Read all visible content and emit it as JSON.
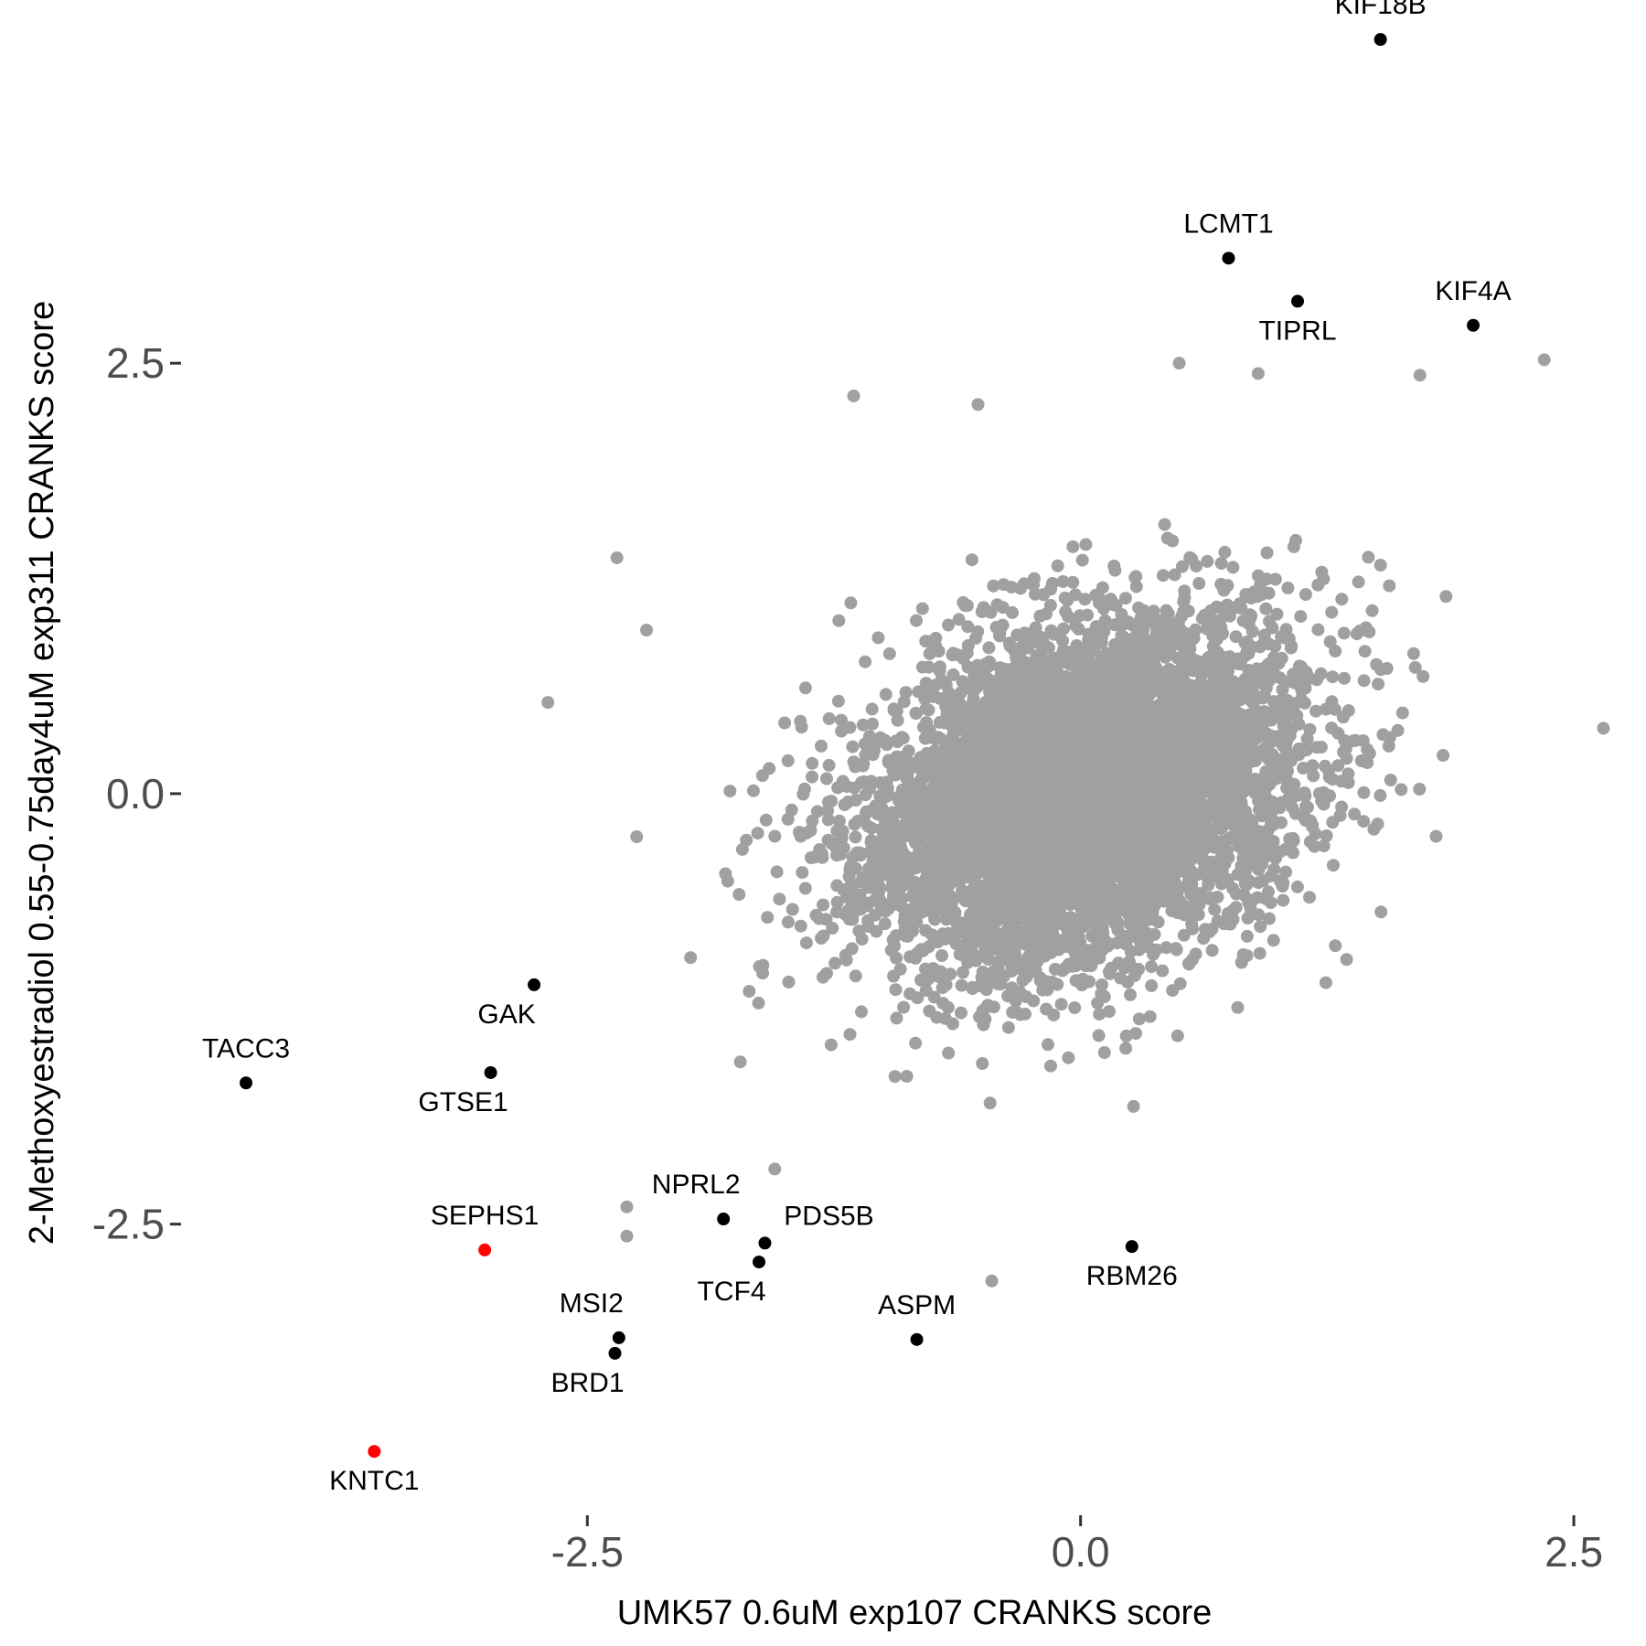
{
  "chart_data": {
    "type": "scatter",
    "xlabel": "UMK57 0.6uM exp107 CRANKS score",
    "ylabel": "2-Methoxyestradiol 0.55-0.75day4uM exp311 CRANKS score",
    "xlim": [
      -4.55,
      2.75
    ],
    "ylim": [
      -4.18,
      4.45
    ],
    "x_ticks": [
      -2.5,
      0.0,
      2.5
    ],
    "x_tick_labels": [
      "-2.5",
      "0.0",
      "2.5"
    ],
    "y_ticks": [
      -2.5,
      0.0,
      2.5
    ],
    "y_tick_labels": [
      "-2.5",
      "0.0",
      "2.5"
    ],
    "grid": false,
    "legend": "none",
    "colors": {
      "background": "#a0a0a0",
      "highlight": "#000000",
      "special": "#ff0000"
    },
    "background_cloud": {
      "description": "dense cloud of genes, approximately bivariate normal",
      "center": [
        0.0,
        0.0
      ],
      "sd": [
        0.55,
        0.5
      ],
      "correlation": 0.25,
      "approx_count": 6000
    },
    "background_outliers": [
      {
        "x": 2.65,
        "y": 0.38
      },
      {
        "x": 2.35,
        "y": 2.52
      },
      {
        "x": 1.72,
        "y": 2.43
      },
      {
        "x": 0.9,
        "y": 2.44
      },
      {
        "x": 0.5,
        "y": 2.5
      },
      {
        "x": -1.15,
        "y": 2.31
      },
      {
        "x": -0.52,
        "y": 2.26
      },
      {
        "x": -2.35,
        "y": 1.37
      },
      {
        "x": -2.7,
        "y": 0.53
      },
      {
        "x": -2.2,
        "y": 0.95
      },
      {
        "x": -2.3,
        "y": -2.4
      },
      {
        "x": -2.3,
        "y": -2.57
      },
      {
        "x": -0.45,
        "y": -2.83
      },
      {
        "x": -2.25,
        "y": -0.25
      },
      {
        "x": -1.55,
        "y": -2.18
      }
    ],
    "labeled_points": [
      {
        "label": "KIF18B",
        "x": 1.52,
        "y": 4.38,
        "color": "#000000",
        "label_pos": "above"
      },
      {
        "label": "LCMT1",
        "x": 0.75,
        "y": 3.11,
        "color": "#000000",
        "label_pos": "above"
      },
      {
        "label": "TIPRL",
        "x": 1.1,
        "y": 2.86,
        "color": "#000000",
        "label_pos": "below"
      },
      {
        "label": "KIF4A",
        "x": 1.99,
        "y": 2.72,
        "color": "#000000",
        "label_pos": "above"
      },
      {
        "label": "GAK",
        "x": -2.77,
        "y": -1.11,
        "color": "#000000",
        "label_pos": "below-left"
      },
      {
        "label": "TACC3",
        "x": -4.23,
        "y": -1.68,
        "color": "#000000",
        "label_pos": "above"
      },
      {
        "label": "GTSE1",
        "x": -2.99,
        "y": -1.62,
        "color": "#000000",
        "label_pos": "below-left"
      },
      {
        "label": "SEPHS1",
        "x": -3.02,
        "y": -2.65,
        "color": "#ff0000",
        "label_pos": "above"
      },
      {
        "label": "NPRL2",
        "x": -1.81,
        "y": -2.47,
        "color": "#000000",
        "label_pos": "above-left"
      },
      {
        "label": "PDS5B",
        "x": -1.6,
        "y": -2.61,
        "color": "#000000",
        "label_pos": "above-right"
      },
      {
        "label": "TCF4",
        "x": -1.63,
        "y": -2.72,
        "color": "#000000",
        "label_pos": "below-left"
      },
      {
        "label": "MSI2",
        "x": -2.34,
        "y": -3.16,
        "color": "#000000",
        "label_pos": "above-left"
      },
      {
        "label": "BRD1",
        "x": -2.36,
        "y": -3.25,
        "color": "#000000",
        "label_pos": "below-left"
      },
      {
        "label": "ASPM",
        "x": -0.83,
        "y": -3.17,
        "color": "#000000",
        "label_pos": "above"
      },
      {
        "label": "RBM26",
        "x": 0.26,
        "y": -2.63,
        "color": "#000000",
        "label_pos": "below"
      },
      {
        "label": "KNTC1",
        "x": -3.58,
        "y": -3.82,
        "color": "#ff0000",
        "label_pos": "below"
      }
    ]
  }
}
